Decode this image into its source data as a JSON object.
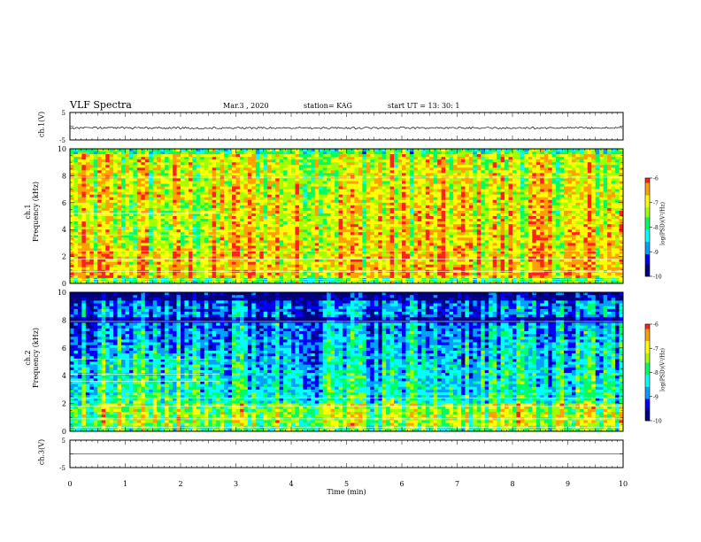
{
  "header": {
    "title": "VLF Spectra",
    "date": "Mar.3  , 2020",
    "station": "station= KAG",
    "start": "start  UT  =   13: 30: 1"
  },
  "chart_data": [
    {
      "type": "line",
      "panel": "ch1-waveform",
      "ylabel": "ch.1(V)",
      "yticks": [
        "5",
        "-5"
      ],
      "ylim": [
        -5,
        5
      ],
      "description_series": "noise-trace-near-zero"
    },
    {
      "type": "heatmap",
      "panel": "ch1-spectrogram",
      "ylabel": "ch.1\nFrequency (kHz)",
      "ylabel_line1": "ch.1",
      "ylabel_line2": "Frequency  (kHz)",
      "yticks": [
        "0",
        "2",
        "4",
        "6",
        "8",
        "10"
      ],
      "ylim": [
        0,
        10
      ],
      "xlim": [
        0,
        10
      ],
      "colorbar": {
        "label": "log(PSD)(V²/Hz)",
        "ticks": [
          "-6",
          "-7",
          "-8",
          "-9",
          "-10"
        ],
        "range": [
          -10,
          -6
        ]
      }
    },
    {
      "type": "heatmap",
      "panel": "ch2-spectrogram",
      "ylabel_line1": "ch.2",
      "ylabel_line2": "Frequency  (kHz)",
      "yticks": [
        "0",
        "2",
        "4",
        "6",
        "8",
        "10"
      ],
      "ylim": [
        0,
        10
      ],
      "xlim": [
        0,
        10
      ],
      "colorbar": {
        "label": "log(PSD)(V²/Hz)",
        "ticks": [
          "-6",
          "-7",
          "-8",
          "-9",
          "-10"
        ],
        "range": [
          -10,
          -6
        ]
      }
    },
    {
      "type": "line",
      "panel": "ch3-waveform",
      "ylabel": "ch.3(V)",
      "yticks": [
        "5",
        "-5"
      ],
      "ylim": [
        -5,
        5
      ]
    }
  ],
  "xaxis": {
    "label": "Time  (min)",
    "ticks": [
      "0",
      "1",
      "2",
      "3",
      "4",
      "5",
      "6",
      "7",
      "8",
      "9",
      "10"
    ],
    "range": [
      0,
      10
    ]
  },
  "colors": {
    "frame": "#000000",
    "colormap": [
      "#000080",
      "#0000ff",
      "#00a0ff",
      "#00ffff",
      "#00ff60",
      "#a0ff00",
      "#ffff00",
      "#ffa000",
      "#ff2020",
      "#ffffff"
    ]
  }
}
